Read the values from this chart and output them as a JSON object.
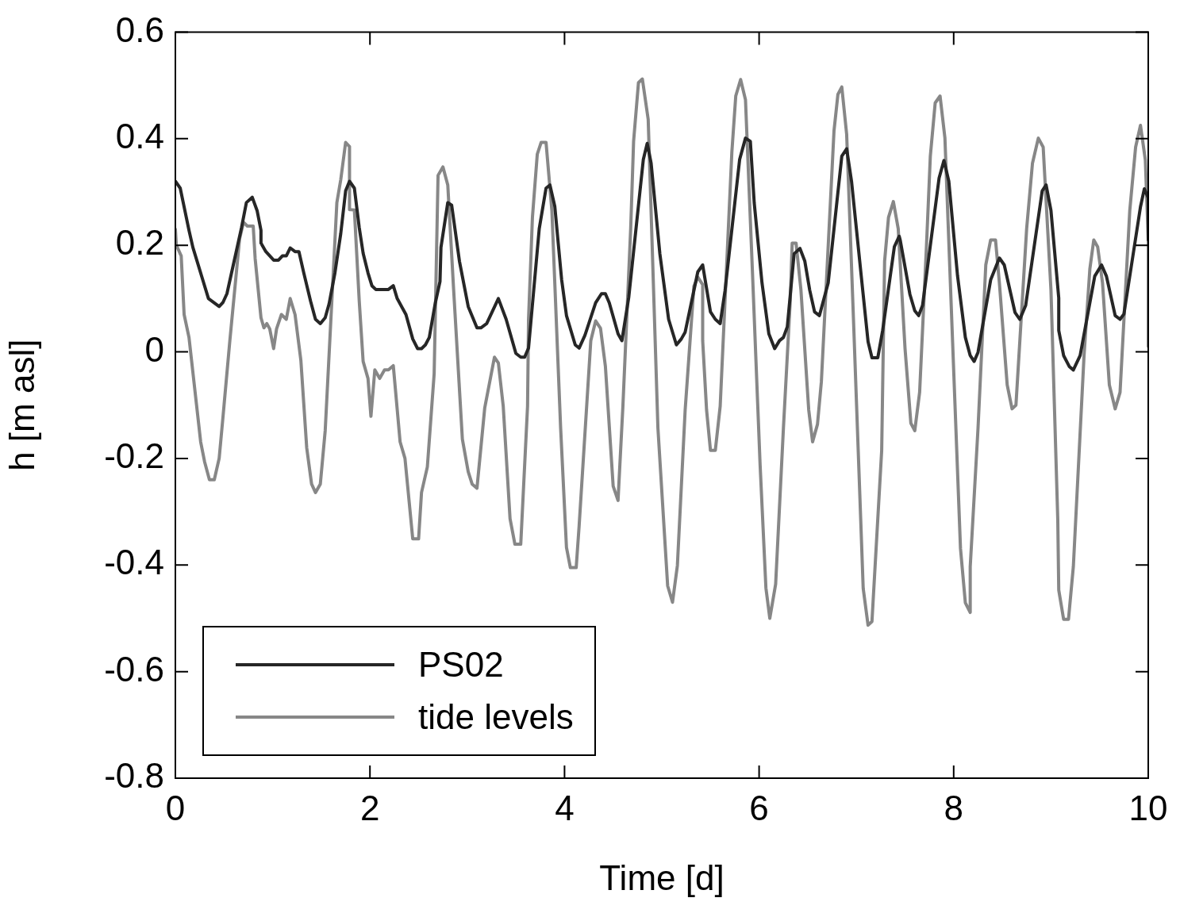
{
  "chart_data": {
    "type": "line",
    "xlabel": "Time [d]",
    "ylabel": "h [m asl]",
    "xlim": [
      0,
      10
    ],
    "ylim": [
      -0.8,
      0.6
    ],
    "xticks": [
      0,
      2,
      4,
      6,
      8,
      10
    ],
    "yticks": [
      -0.8,
      -0.6,
      -0.4,
      -0.2,
      0,
      0.2,
      0.4,
      0.6
    ],
    "legend": "bottom left",
    "marker": "none",
    "line_style": "solid",
    "series": [
      {
        "name": "PS02",
        "color": "#262626",
        "x": [
          0,
          0.05,
          0.14,
          0.18,
          0.34,
          0.45,
          0.49,
          0.53,
          0.68,
          0.73,
          0.79,
          0.84,
          0.88,
          0.88,
          0.93,
          1.01,
          1.06,
          1.1,
          1.14,
          1.18,
          1.23,
          1.27,
          1.32,
          1.39,
          1.44,
          1.49,
          1.54,
          1.58,
          1.64,
          1.7,
          1.75,
          1.79,
          1.84,
          1.89,
          1.93,
          1.98,
          2.02,
          2.06,
          2.19,
          2.24,
          2.28,
          2.37,
          2.44,
          2.49,
          2.53,
          2.57,
          2.61,
          2.67,
          2.72,
          2.73,
          2.8,
          2.84,
          2.92,
          3.01,
          3.1,
          3.14,
          3.2,
          3.32,
          3.4,
          3.5,
          3.55,
          3.59,
          3.63,
          3.74,
          3.81,
          3.85,
          3.9,
          3.97,
          4.02,
          4.11,
          4.15,
          4.21,
          4.32,
          4.38,
          4.42,
          4.46,
          4.55,
          4.59,
          4.66,
          4.81,
          4.85,
          4.89,
          4.98,
          5.07,
          5.15,
          5.2,
          5.24,
          5.37,
          5.42,
          5.5,
          5.55,
          5.6,
          5.65,
          5.8,
          5.86,
          5.91,
          5.95,
          6.03,
          6.1,
          6.16,
          6.21,
          6.25,
          6.29,
          6.36,
          6.42,
          6.47,
          6.52,
          6.57,
          6.62,
          6.71,
          6.85,
          6.9,
          6.95,
          7.05,
          7.12,
          7.16,
          7.22,
          7.27,
          7.39,
          7.44,
          7.45,
          7.55,
          7.6,
          7.64,
          7.68,
          7.85,
          7.9,
          7.95,
          8.04,
          8.12,
          8.17,
          8.21,
          8.25,
          8.38,
          8.47,
          8.52,
          8.63,
          8.68,
          8.74,
          8.91,
          8.95,
          9,
          9.08,
          9.08,
          9.13,
          9.19,
          9.23,
          9.3,
          9.45,
          9.52,
          9.57,
          9.66,
          9.71,
          9.75,
          9.92,
          9.96,
          10,
          10
        ],
        "values": [
          0.32,
          0.307,
          0.228,
          0.196,
          0.1,
          0.085,
          0.093,
          0.109,
          0.233,
          0.28,
          0.29,
          0.265,
          0.228,
          0.204,
          0.188,
          0.172,
          0.172,
          0.18,
          0.18,
          0.195,
          0.188,
          0.188,
          0.148,
          0.095,
          0.061,
          0.053,
          0.064,
          0.09,
          0.148,
          0.222,
          0.302,
          0.32,
          0.307,
          0.233,
          0.185,
          0.148,
          0.124,
          0.117,
          0.117,
          0.124,
          0.1,
          0.07,
          0.024,
          0.006,
          0.006,
          0.013,
          0.027,
          0.09,
          0.132,
          0.196,
          0.28,
          0.275,
          0.17,
          0.085,
          0.045,
          0.045,
          0.053,
          0.1,
          0.061,
          -0.003,
          -0.01,
          -0.01,
          0.007,
          0.231,
          0.307,
          0.313,
          0.273,
          0.136,
          0.068,
          0.013,
          0.007,
          0.031,
          0.092,
          0.109,
          0.109,
          0.092,
          0.034,
          0.021,
          0.102,
          0.361,
          0.391,
          0.354,
          0.184,
          0.061,
          0.013,
          0.024,
          0.037,
          0.15,
          0.163,
          0.075,
          0.061,
          0.053,
          0.115,
          0.361,
          0.401,
          0.395,
          0.279,
          0.129,
          0.034,
          0.006,
          0.021,
          0.027,
          0.047,
          0.184,
          0.194,
          0.17,
          0.116,
          0.075,
          0.068,
          0.129,
          0.367,
          0.381,
          0.32,
          0.142,
          0.019,
          -0.011,
          -0.011,
          0.04,
          0.197,
          0.217,
          0.21,
          0.108,
          0.077,
          0.068,
          0.087,
          0.326,
          0.359,
          0.32,
          0.142,
          0.027,
          -0.007,
          -0.018,
          -0.001,
          0.135,
          0.176,
          0.163,
          0.074,
          0.061,
          0.087,
          0.302,
          0.313,
          0.265,
          0.101,
          0.04,
          -0.007,
          -0.028,
          -0.034,
          -0.007,
          0.142,
          0.163,
          0.142,
          0.068,
          0.061,
          0.071,
          0.272,
          0.306,
          0.289,
          0.21
        ]
      },
      {
        "name": "tide levels",
        "color": "#878787",
        "x": [
          0,
          0.01,
          0.06,
          0.09,
          0.14,
          0.26,
          0.3,
          0.35,
          0.4,
          0.45,
          0.49,
          0.56,
          0.66,
          0.7,
          0.74,
          0.8,
          0.82,
          0.88,
          0.91,
          0.94,
          0.97,
          1.01,
          1.04,
          1.09,
          1.14,
          1.18,
          1.23,
          1.29,
          1.35,
          1.4,
          1.44,
          1.49,
          1.54,
          1.66,
          1.7,
          1.75,
          1.79,
          1.79,
          1.84,
          1.89,
          1.93,
          1.98,
          2.01,
          2.05,
          2.1,
          2.15,
          2.19,
          2.24,
          2.31,
          2.36,
          2.44,
          2.5,
          2.53,
          2.59,
          2.66,
          2.7,
          2.75,
          2.8,
          2.86,
          2.95,
          3.01,
          3.05,
          3.1,
          3.18,
          3.28,
          3.32,
          3.37,
          3.44,
          3.49,
          3.55,
          3.62,
          3.63,
          3.67,
          3.72,
          3.76,
          3.81,
          3.87,
          3.96,
          4.02,
          4.06,
          4.12,
          4.15,
          4.27,
          4.32,
          4.37,
          4.42,
          4.5,
          4.55,
          4.6,
          4.68,
          4.71,
          4.76,
          4.8,
          4.86,
          4.96,
          5.06,
          5.11,
          5.16,
          5.24,
          5.33,
          5.37,
          5.42,
          5.42,
          5.46,
          5.5,
          5.55,
          5.6,
          5.72,
          5.76,
          5.81,
          5.86,
          5.93,
          6.01,
          6.07,
          6.11,
          6.17,
          6.25,
          6.32,
          6.34,
          6.38,
          6.43,
          6.51,
          6.55,
          6.6,
          6.64,
          6.77,
          6.81,
          6.85,
          6.9,
          6.97,
          7.07,
          7.12,
          7.16,
          7.26,
          7.29,
          7.33,
          7.38,
          7.43,
          7.5,
          7.56,
          7.6,
          7.65,
          7.72,
          7.76,
          7.81,
          7.86,
          7.91,
          7.98,
          8.07,
          8.12,
          8.17,
          8.17,
          8.25,
          8.33,
          8.38,
          8.43,
          8.47,
          8.55,
          8.6,
          8.64,
          8.75,
          8.81,
          8.87,
          8.92,
          9,
          9.07,
          9.08,
          9.13,
          9.18,
          9.23,
          9.34,
          9.4,
          9.44,
          9.48,
          9.53,
          9.6,
          9.66,
          9.71,
          9.81,
          9.87,
          9.92,
          9.97,
          10,
          10
        ],
        "values": [
          0.23,
          0.2,
          0.18,
          0.07,
          0.027,
          -0.169,
          -0.206,
          -0.24,
          -0.24,
          -0.2,
          -0.121,
          0.021,
          0.212,
          0.243,
          0.236,
          0.236,
          0.175,
          0.064,
          0.045,
          0.053,
          0.043,
          0.006,
          0.043,
          0.07,
          0.061,
          0.1,
          0.07,
          -0.016,
          -0.18,
          -0.248,
          -0.264,
          -0.248,
          -0.148,
          0.28,
          0.323,
          0.393,
          0.385,
          0.267,
          0.266,
          0.095,
          -0.018,
          -0.05,
          -0.121,
          -0.034,
          -0.05,
          -0.034,
          -0.034,
          -0.026,
          -0.169,
          -0.2,
          -0.351,
          -0.351,
          -0.264,
          -0.216,
          -0.041,
          0.331,
          0.347,
          0.313,
          0.117,
          -0.164,
          -0.225,
          -0.248,
          -0.256,
          -0.105,
          -0.01,
          -0.021,
          -0.102,
          -0.313,
          -0.361,
          -0.361,
          -0.102,
          0.061,
          0.252,
          0.371,
          0.393,
          0.393,
          0.265,
          -0.143,
          -0.367,
          -0.405,
          -0.405,
          -0.327,
          0.021,
          0.058,
          0.044,
          -0.027,
          -0.252,
          -0.279,
          -0.102,
          0.231,
          0.395,
          0.505,
          0.512,
          0.436,
          -0.143,
          -0.439,
          -0.47,
          -0.401,
          -0.109,
          0.123,
          0.14,
          0.126,
          0.021,
          -0.109,
          -0.185,
          -0.185,
          -0.102,
          0.375,
          0.48,
          0.511,
          0.473,
          0.157,
          -0.211,
          -0.443,
          -0.5,
          -0.436,
          -0.143,
          0.095,
          0.204,
          0.204,
          0.116,
          -0.109,
          -0.169,
          -0.136,
          -0.056,
          0.415,
          0.483,
          0.497,
          0.408,
          0.061,
          -0.444,
          -0.513,
          -0.506,
          -0.185,
          0.17,
          0.252,
          0.282,
          0.231,
          0.006,
          -0.134,
          -0.148,
          -0.076,
          0.197,
          0.367,
          0.467,
          0.48,
          0.401,
          0.061,
          -0.369,
          -0.471,
          -0.489,
          -0.403,
          -0.144,
          0.163,
          0.21,
          0.21,
          0.129,
          -0.062,
          -0.107,
          -0.1,
          0.231,
          0.354,
          0.401,
          0.384,
          0.116,
          -0.315,
          -0.447,
          -0.502,
          -0.502,
          -0.403,
          -0.007,
          0.156,
          0.21,
          0.197,
          0.129,
          -0.062,
          -0.107,
          -0.076,
          0.265,
          0.384,
          0.425,
          0.36,
          0.21,
          0.01
        ]
      }
    ]
  }
}
